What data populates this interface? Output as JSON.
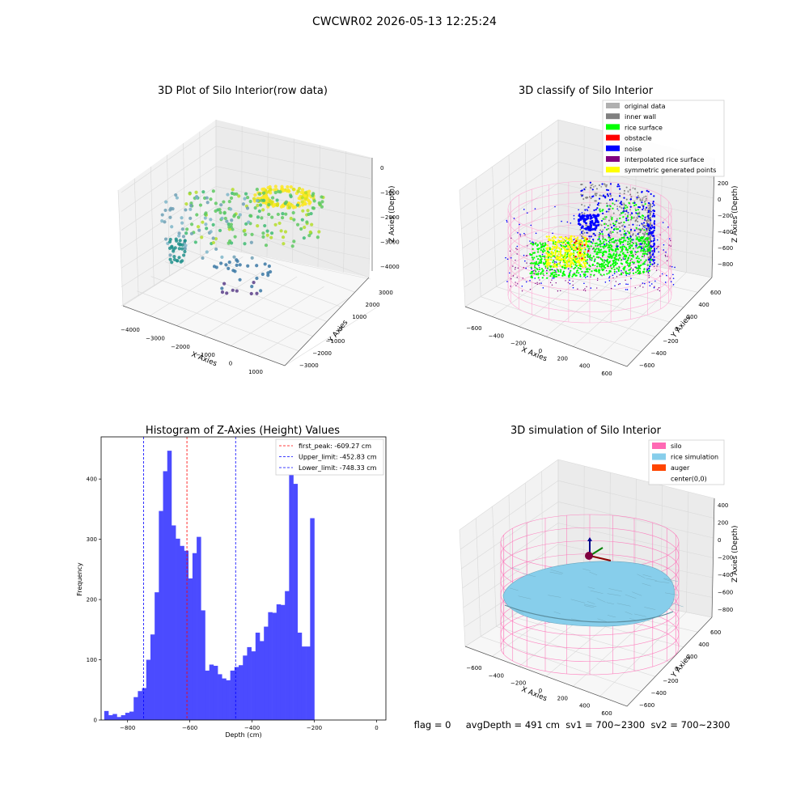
{
  "suptitle": "CWCWR02 2026-05-13 12:25:24",
  "status_line": "flag = 0     avgDepth = 491 cm  sv1 = 700~2300  sv2 = 700~2300",
  "colors": {
    "hist_bar": "#4b4bff",
    "peak_line": "#ff0000",
    "limit_line": "#0000ff",
    "pane": "#f2f2f2",
    "grid": "#d9d9d9"
  },
  "chart_data": [
    {
      "type": "scatter",
      "subtype": "3d",
      "title": "3D Plot of Silo Interior(row data)",
      "xlabel": "X Axies",
      "ylabel": "Y Axies",
      "zlabel": "Z Axies (Depth)",
      "x_ticks": [
        "−4000",
        "−3000",
        "−2000",
        "−1000",
        "0",
        "1000"
      ],
      "y_ticks": [
        "−3000",
        "−2000",
        "−1000",
        "0",
        "1000",
        "2000",
        "3000"
      ],
      "z_ticks": [
        "0",
        "−1000",
        "−2000",
        "−3000",
        "−4000"
      ],
      "xlim": [
        -4400,
        1500
      ],
      "ylim": [
        -3300,
        3300
      ],
      "zlim": [
        -4400,
        200
      ],
      "colormap": "viridis"
    },
    {
      "type": "scatter",
      "subtype": "3d",
      "title": "3D classify of Silo Interior",
      "xlabel": "X Axies",
      "ylabel": "Y Axies",
      "zlabel": "Z Axies (Depth)",
      "x_ticks": [
        "−600",
        "−400",
        "−200",
        "0",
        "200",
        "400",
        "600"
      ],
      "y_ticks": [
        "−600",
        "−400",
        "−200",
        "0",
        "200",
        "400",
        "600"
      ],
      "z_ticks": [
        "200",
        "0",
        "−200",
        "−400",
        "−600",
        "−800"
      ],
      "legend": [
        {
          "label": "original data",
          "color": "#b0b0b0"
        },
        {
          "label": "inner wall",
          "color": "#808080"
        },
        {
          "label": "rice surface",
          "color": "#00ff00"
        },
        {
          "label": "obstacle",
          "color": "#ff0000"
        },
        {
          "label": "noise",
          "color": "#0000ff"
        },
        {
          "label": "interpolated rice surface",
          "color": "#800080"
        },
        {
          "label": "symmetric generated points",
          "color": "#ffff00"
        }
      ],
      "legend_position": "top-right"
    },
    {
      "type": "bar",
      "subtype": "histogram",
      "title": "Histogram of Z-Axies (Height) Values",
      "xlabel": "Depth (cm)",
      "ylabel": "Frequency",
      "xlim": [
        -885,
        30
      ],
      "ylim": [
        0,
        470
      ],
      "x_ticks": [
        -800,
        -600,
        -400,
        -200,
        0
      ],
      "y_ticks": [
        0,
        100,
        200,
        300,
        400
      ],
      "bin_edges_start": -875,
      "bin_width": 13.5,
      "values": [
        15,
        8,
        10,
        5,
        8,
        12,
        14,
        38,
        48,
        53,
        100,
        142,
        212,
        347,
        413,
        447,
        323,
        301,
        289,
        281,
        235,
        277,
        304,
        182,
        82,
        92,
        90,
        76,
        69,
        66,
        82,
        88,
        91,
        107,
        121,
        114,
        145,
        131,
        155,
        179,
        178,
        192,
        191,
        214,
        407,
        392,
        145,
        122,
        122,
        335
      ],
      "lines": [
        {
          "label": "first_peak: -609.27 cm",
          "x": -609.27,
          "color": "#ff0000"
        },
        {
          "label": "Upper_limit: -452.83 cm",
          "x": -452.83,
          "color": "#0000ff"
        },
        {
          "label": "Lower_limit: -748.33 cm",
          "x": -748.33,
          "color": "#0000ff"
        }
      ],
      "legend_position": "top-right"
    },
    {
      "type": "area",
      "subtype": "3d-surface",
      "title": "3D simulation of Silo Interior",
      "xlabel": "X Axies",
      "ylabel": "Y Axies",
      "zlabel": "Z Axies (Depth)",
      "x_ticks": [
        "−600",
        "−400",
        "−200",
        "0",
        "200",
        "400",
        "600"
      ],
      "y_ticks": [
        "−600",
        "−400",
        "−200",
        "0",
        "200",
        "400",
        "600"
      ],
      "z_ticks": [
        "400",
        "200",
        "0",
        "−200",
        "−400",
        "−600",
        "−800"
      ],
      "legend": [
        {
          "label": "silo",
          "color": "#ff69b4"
        },
        {
          "label": "rice simulation",
          "color": "#87ceeb"
        },
        {
          "label": "auger",
          "color": "#ff4500"
        },
        {
          "label": "center(0,0)",
          "color": ""
        }
      ],
      "legend_position": "top-right"
    }
  ]
}
